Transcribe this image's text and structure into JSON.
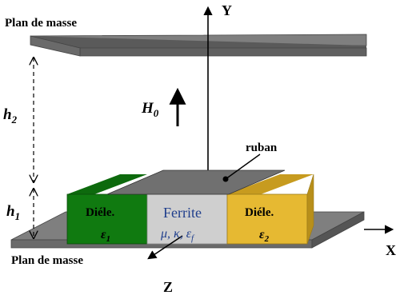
{
  "labels": {
    "top_plane": "Plan de masse",
    "bottom_plane": "Plan de masse",
    "axis_y": "Y",
    "axis_x": "X",
    "axis_z": "Z",
    "field": "H",
    "field_sub": "0",
    "h2": "h",
    "h2_sub": "2",
    "h1": "h",
    "h1_sub": "1",
    "ribbon": "ruban",
    "diel_left": "Diéle.",
    "diel_left_perm": "ε",
    "diel_left_perm_sub": "1",
    "ferrite": "Ferrite",
    "ferrite_params": "μ, κ, ε",
    "ferrite_params_sub": "f",
    "diel_right": "Diéle.",
    "diel_right_perm": "ε",
    "diel_right_perm_sub": "2"
  },
  "colors": {
    "plane_gray": "#7f7f7f",
    "diel_left_green": "#107a10",
    "ferrite_gray": "#cfcfcf",
    "diel_right_yellow": "#e6b932",
    "ribbon_gray": "#6e6e6e",
    "ferrite_text": "#1f3e8c"
  }
}
